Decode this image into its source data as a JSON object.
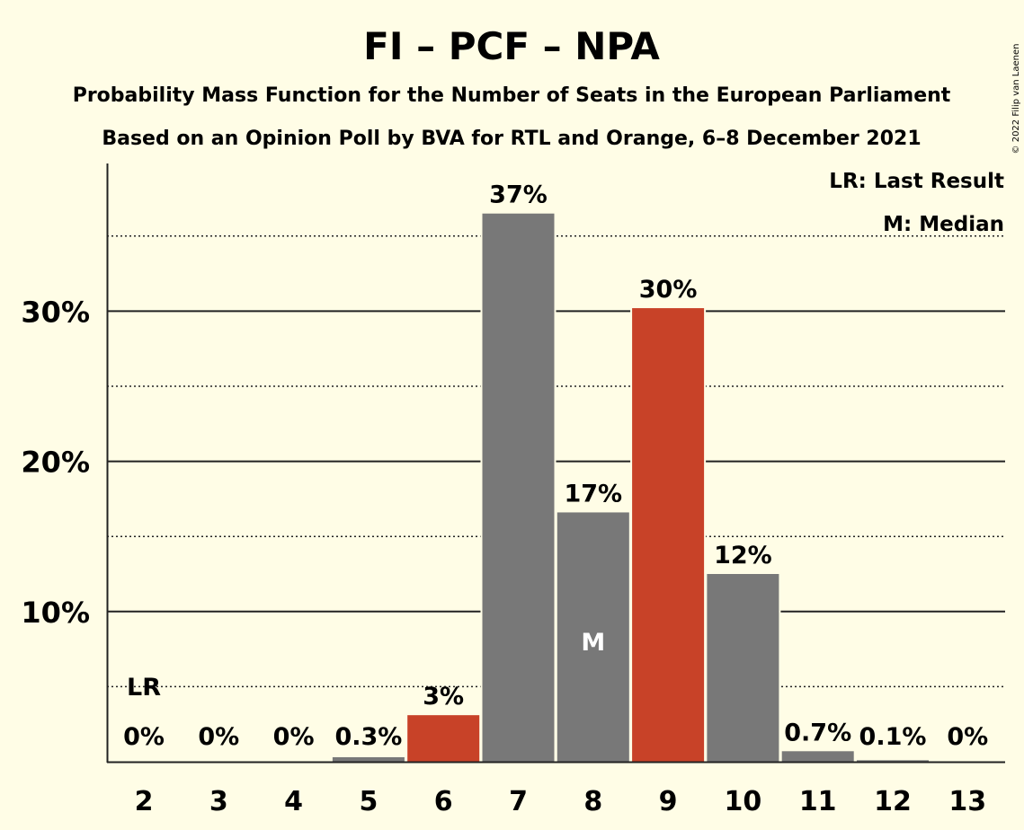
{
  "title": "FI – PCF – NPA",
  "subtitle1": "Probability Mass Function for the Number of Seats in the European Parliament",
  "subtitle2": "Based on an Opinion Poll by BVA for RTL and Orange, 6–8 December 2021",
  "copyright": "© 2022 Filip van Laenen",
  "legend": {
    "last_result": "LR: Last Result",
    "median": "M: Median"
  },
  "colors": {
    "background": "#fffde6",
    "gray_bar": "#787878",
    "party_bar": "#c84228",
    "axis": "#222222"
  },
  "chart_data": {
    "type": "bar",
    "categories": [
      "2",
      "3",
      "4",
      "5",
      "6",
      "7",
      "8",
      "9",
      "10",
      "11",
      "12",
      "13"
    ],
    "values": [
      0,
      0,
      0,
      0.3,
      3.1,
      36.5,
      16.6,
      30.2,
      12.5,
      0.7,
      0.1,
      0
    ],
    "value_labels": [
      "0%",
      "0%",
      "0%",
      "0.3%",
      "3%",
      "37%",
      "17%",
      "30%",
      "12%",
      "0.7%",
      "0.1%",
      "0%"
    ],
    "bar_colors": [
      "gray",
      "gray",
      "gray",
      "gray",
      "party",
      "gray",
      "gray",
      "party",
      "gray",
      "gray",
      "gray",
      "gray"
    ],
    "y_ticks": [
      10,
      20,
      30
    ],
    "y_tick_labels": [
      "10%",
      "20%",
      "30%"
    ],
    "ylim": [
      0,
      39.5
    ],
    "grid": "solid at 10% steps, dotted at 5% offsets",
    "last_result_category": "2",
    "last_result_marker": "LR",
    "median_category": "8",
    "median_marker": "M"
  }
}
